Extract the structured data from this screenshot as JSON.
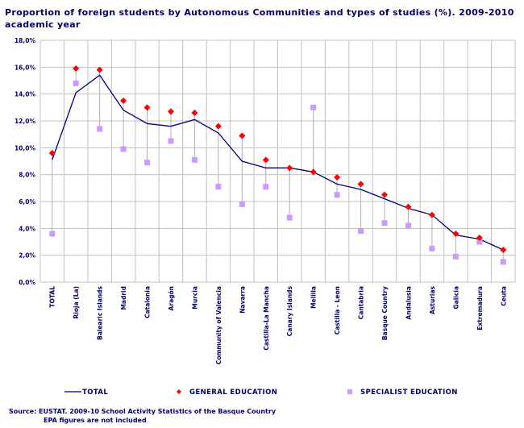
{
  "chart_data": {
    "type": "line",
    "title": "Proportion of foreign students by Autonomous Communities and types of studies  (%). 2009-2010 academic year",
    "xlabel": "",
    "ylabel": "",
    "ylim": [
      0,
      18
    ],
    "yticks": [
      "0,0%",
      "2,0%",
      "4,0%",
      "6,0%",
      "8,0%",
      "10,0%",
      "12,0%",
      "14,0%",
      "16,0%",
      "18,0%"
    ],
    "grid": true,
    "legend_position": "bottom",
    "categories": [
      "TOTAL",
      "Rioja (La)",
      "Balearic Islands",
      "Madrid",
      "Catalonia",
      "Aragón",
      "Murcia",
      "Community of Valencia",
      "Navarra",
      "Castilla-La Mancha",
      "Canary Islands",
      "Melilla",
      "Castilla - Leon",
      "Cantabria",
      "Basque Country",
      "Andalusia",
      "Asturias",
      "Galicia",
      "Extremadura",
      "Ceuta"
    ],
    "series": [
      {
        "name": "TOTAL",
        "style": "line",
        "color": "#000080",
        "values": [
          9.1,
          14.1,
          15.4,
          12.8,
          11.8,
          11.6,
          12.1,
          11.1,
          9.0,
          8.5,
          8.5,
          8.2,
          7.3,
          6.9,
          6.2,
          5.5,
          5.0,
          3.5,
          3.2,
          2.4
        ]
      },
      {
        "name": "GENERAL EDUCATION",
        "style": "diamond-marker",
        "color": "#ff0000",
        "values": [
          9.6,
          15.9,
          15.8,
          13.5,
          13.0,
          12.7,
          12.6,
          11.6,
          10.9,
          9.1,
          8.5,
          8.2,
          7.8,
          7.3,
          6.5,
          5.6,
          5.0,
          3.6,
          3.3,
          2.4
        ]
      },
      {
        "name": "SPECIALIST EDUCATION",
        "style": "square-marker",
        "color": "#cc99ff",
        "values": [
          3.6,
          14.8,
          11.4,
          9.9,
          8.9,
          10.5,
          9.1,
          7.1,
          5.8,
          7.1,
          4.8,
          13.0,
          6.5,
          3.8,
          4.4,
          4.2,
          2.5,
          1.9,
          3.0,
          1.5
        ]
      }
    ]
  },
  "source": {
    "line1": "Source: EUSTAT. 2009-10 School Activity Statistics of the Basque Country",
    "line2": "EPA figures are not included"
  }
}
